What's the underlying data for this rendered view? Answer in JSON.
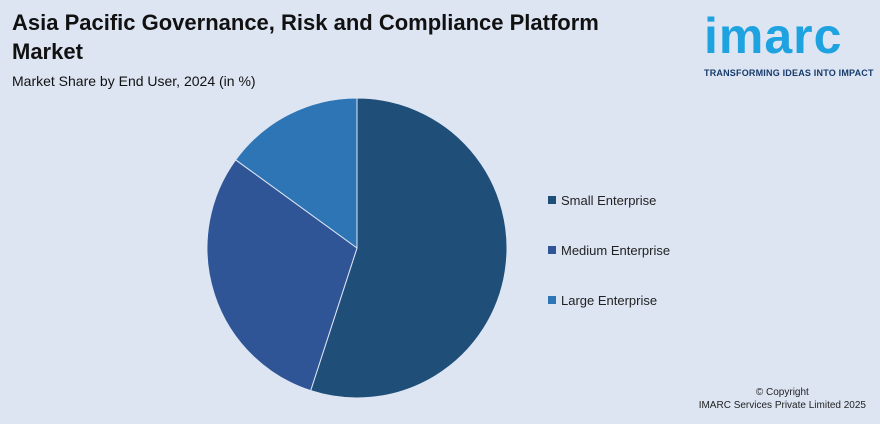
{
  "header": {
    "title": "Asia Pacific Governance, Risk and Compliance Platform Market",
    "subtitle": "Market Share by End User, 2024 (in %)"
  },
  "logo": {
    "word": "imarc",
    "tagline": "TRANSFORMING IDEAS INTO IMPACT",
    "color": "#1fa3e0"
  },
  "chart_data": {
    "type": "pie",
    "title": "Asia Pacific Governance, Risk and Compliance Platform Market",
    "subtitle": "Market Share by End User, 2024 (in %)",
    "categories": [
      "Small Enterprise",
      "Medium Enterprise",
      "Large Enterprise"
    ],
    "values": [
      55,
      30,
      15
    ],
    "colors": [
      "#1f4e79",
      "#2f5597",
      "#2e75b6"
    ],
    "legend_position": "right",
    "start_angle": "top, clockwise"
  },
  "legend": {
    "items": [
      {
        "label": "Small Enterprise",
        "color": "#1f4e79"
      },
      {
        "label": "Medium Enterprise",
        "color": "#2f5597"
      },
      {
        "label": "Large Enterprise",
        "color": "#2e75b6"
      }
    ]
  },
  "footer": {
    "line1": "© Copyright",
    "line2": "IMARC Services Private Limited 2025"
  }
}
